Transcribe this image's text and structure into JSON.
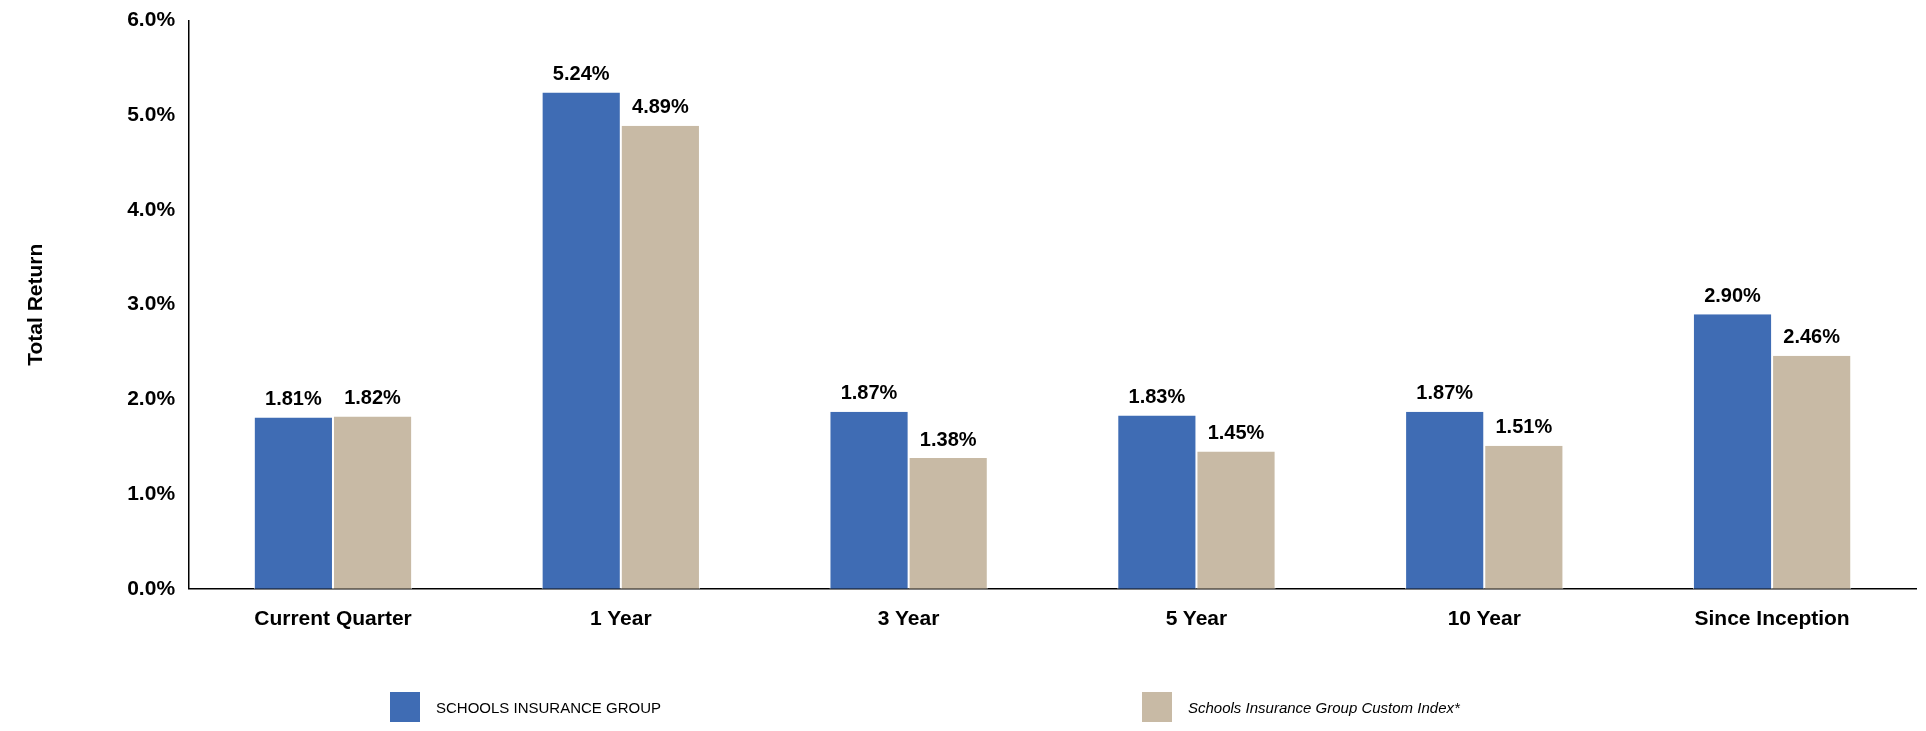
{
  "chart_data": {
    "type": "bar",
    "ylabel": "Total Return",
    "categories": [
      "Current Quarter",
      "1 Year",
      "3 Year",
      "5 Year",
      "10 Year",
      "Since Inception"
    ],
    "series": [
      {
        "name": "SCHOOLS INSURANCE GROUP",
        "color": "#3f6cb4",
        "values": [
          1.81,
          5.24,
          1.87,
          1.83,
          1.87,
          2.9
        ],
        "value_labels": [
          "1.81%",
          "5.24%",
          "1.87%",
          "1.83%",
          "1.87%",
          "2.90%"
        ]
      },
      {
        "name": "Schools Insurance Group Custom Index*",
        "color": "#c8baa5",
        "values": [
          1.82,
          4.89,
          1.38,
          1.45,
          1.51,
          2.46
        ],
        "value_labels": [
          "1.82%",
          "4.89%",
          "1.38%",
          "1.45%",
          "1.51%",
          "2.46%"
        ]
      }
    ],
    "ylim": [
      0,
      6
    ],
    "yticks": [
      {
        "value": 0,
        "label": "0.0%"
      },
      {
        "value": 1,
        "label": "1.0%"
      },
      {
        "value": 2,
        "label": "2.0%"
      },
      {
        "value": 3,
        "label": "3.0%"
      },
      {
        "value": 4,
        "label": "4.0%"
      },
      {
        "value": 5,
        "label": "5.0%"
      },
      {
        "value": 6,
        "label": "6.0%"
      }
    ],
    "grid": false,
    "legend": "bottom"
  }
}
